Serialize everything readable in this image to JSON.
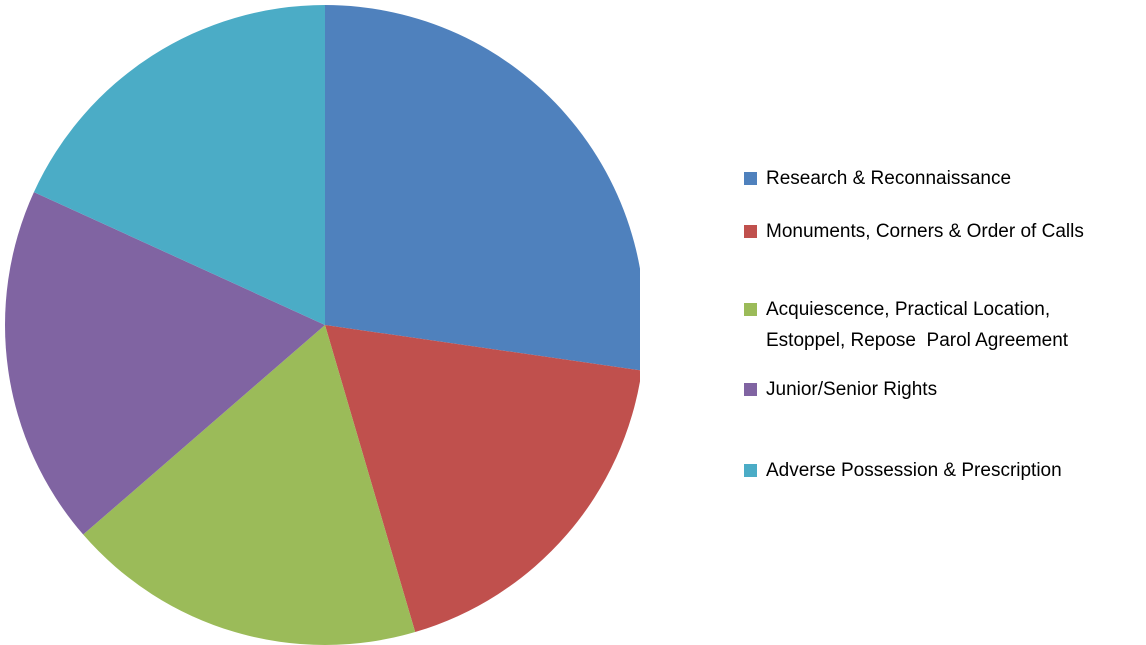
{
  "chart_data": {
    "type": "pie",
    "categories": [
      "Research & Reconnaissance",
      "Monuments, Corners & Order of Calls",
      "Acquiescence, Practical Location, Estoppel, Repose  Parol Agreement",
      "Junior/Senior Rights",
      "Adverse Possession & Prescription"
    ],
    "values": [
      3,
      2,
      2,
      2,
      2
    ],
    "colors": [
      "#4f81bd",
      "#c0504d",
      "#9bbb59",
      "#8064a2",
      "#4bacc6"
    ],
    "legend": "right"
  }
}
